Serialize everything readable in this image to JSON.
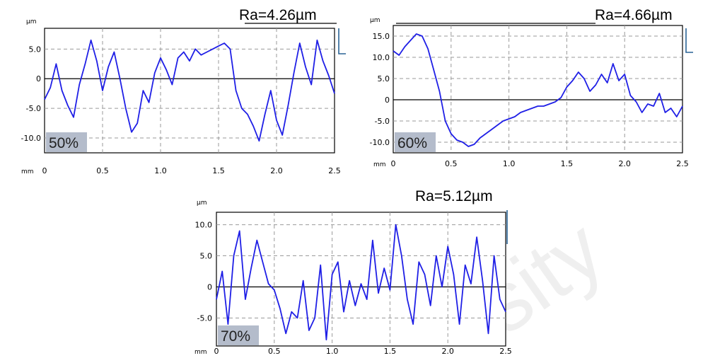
{
  "colors": {
    "series": "#1f1fe6",
    "grid": "#9a9a9a",
    "label_box": "#b4bccb",
    "marker": "#2a6496"
  },
  "watermark": "sity",
  "chart_data": [
    {
      "type": "line",
      "y_unit": "µm",
      "x_unit": "mm",
      "ra_label": "Ra=4.26µm",
      "percent_label": "50%",
      "xlim": [
        0,
        2.5
      ],
      "ylim": [
        -12.5,
        8.5
      ],
      "x_ticks": [
        0,
        0.5,
        1.0,
        1.5,
        2.0,
        2.5
      ],
      "x_tick_labels": [
        "0",
        "0.5",
        "1.0",
        "1.5",
        "2.0",
        "2.5"
      ],
      "y_ticks": [
        5.0,
        0,
        -5.0,
        -10.0
      ],
      "y_tick_labels": [
        "5.0",
        "0",
        "-5.0",
        "-10.0"
      ],
      "grid": true,
      "x": [
        0,
        0.05,
        0.1,
        0.15,
        0.2,
        0.25,
        0.3,
        0.35,
        0.4,
        0.45,
        0.5,
        0.55,
        0.6,
        0.65,
        0.7,
        0.75,
        0.8,
        0.85,
        0.9,
        0.95,
        1.0,
        1.05,
        1.1,
        1.15,
        1.2,
        1.25,
        1.3,
        1.35,
        1.4,
        1.45,
        1.5,
        1.55,
        1.6,
        1.65,
        1.7,
        1.75,
        1.8,
        1.85,
        1.9,
        1.95,
        2.0,
        2.05,
        2.1,
        2.15,
        2.2,
        2.25,
        2.3,
        2.35,
        2.4,
        2.45,
        2.5
      ],
      "y": [
        -3.5,
        -1.5,
        2.5,
        -2.0,
        -4.5,
        -6.5,
        -1.0,
        2.5,
        6.5,
        3.0,
        -2.0,
        2.0,
        4.5,
        0.0,
        -5.0,
        -9.0,
        -7.5,
        -2.0,
        -4.0,
        1.0,
        3.5,
        1.5,
        -1.0,
        3.5,
        4.5,
        3.0,
        5.0,
        4.0,
        4.5,
        5.0,
        5.5,
        6.0,
        5.0,
        -2.0,
        -5.0,
        -6.0,
        -8.0,
        -10.5,
        -6.0,
        -2.0,
        -7.0,
        -9.5,
        -4.5,
        1.0,
        6.0,
        2.0,
        -1.0,
        6.5,
        3.0,
        0.5,
        -2.5
      ]
    },
    {
      "type": "line",
      "y_unit": "µm",
      "x_unit": "mm",
      "ra_label": "Ra=4.66µm",
      "percent_label": "60%",
      "xlim": [
        0,
        2.5
      ],
      "ylim": [
        -12.5,
        17.5
      ],
      "x_ticks": [
        0,
        0.5,
        1.0,
        1.5,
        2.0,
        2.5
      ],
      "x_tick_labels": [
        "0",
        "0.5",
        "1.0",
        "1.5",
        "2.0",
        "2.5"
      ],
      "y_ticks": [
        15.0,
        10.0,
        5.0,
        0,
        -5.0,
        -10.0
      ],
      "y_tick_labels": [
        "15.0",
        "10.0",
        "5.0",
        "0",
        "-5.0",
        "-10.0"
      ],
      "grid": true,
      "x": [
        0,
        0.05,
        0.1,
        0.15,
        0.2,
        0.25,
        0.3,
        0.35,
        0.4,
        0.45,
        0.5,
        0.55,
        0.6,
        0.65,
        0.7,
        0.75,
        0.8,
        0.85,
        0.9,
        0.95,
        1.0,
        1.05,
        1.1,
        1.15,
        1.2,
        1.25,
        1.3,
        1.35,
        1.4,
        1.45,
        1.5,
        1.55,
        1.6,
        1.65,
        1.7,
        1.75,
        1.8,
        1.85,
        1.9,
        1.95,
        2.0,
        2.05,
        2.1,
        2.15,
        2.2,
        2.25,
        2.3,
        2.35,
        2.4,
        2.45,
        2.5
      ],
      "y": [
        11.5,
        10.5,
        12.5,
        14.0,
        15.5,
        15.0,
        12.0,
        7.0,
        2.0,
        -5.0,
        -8.0,
        -9.5,
        -10.0,
        -11.0,
        -10.5,
        -9.0,
        -8.0,
        -7.0,
        -6.0,
        -5.0,
        -4.5,
        -4.0,
        -3.0,
        -2.5,
        -2.0,
        -1.5,
        -1.5,
        -1.0,
        -0.5,
        0.5,
        3.0,
        4.5,
        6.5,
        5.0,
        2.0,
        3.5,
        6.0,
        4.0,
        8.5,
        4.5,
        6.0,
        1.0,
        -0.5,
        -3.0,
        -1.0,
        -1.5,
        1.5,
        -3.0,
        -2.0,
        -4.0,
        -1.5
      ]
    },
    {
      "type": "line",
      "y_unit": "µm",
      "x_unit": "mm",
      "ra_label": "Ra=5.12µm",
      "percent_label": "70%",
      "xlim": [
        0,
        2.5
      ],
      "ylim": [
        -9.5,
        12.0
      ],
      "x_ticks": [
        0,
        0.5,
        1.0,
        1.5,
        2.0,
        2.5
      ],
      "x_tick_labels": [
        "0",
        "0.5",
        "1.0",
        "1.5",
        "2.0",
        "2.5"
      ],
      "y_ticks": [
        10.0,
        5.0,
        0,
        -5.0
      ],
      "y_tick_labels": [
        "10.0",
        "5.0",
        "0",
        "-5.0"
      ],
      "grid": true,
      "x": [
        0,
        0.05,
        0.1,
        0.15,
        0.2,
        0.25,
        0.3,
        0.35,
        0.4,
        0.45,
        0.5,
        0.55,
        0.6,
        0.65,
        0.7,
        0.75,
        0.8,
        0.85,
        0.9,
        0.95,
        1.0,
        1.05,
        1.1,
        1.15,
        1.2,
        1.25,
        1.3,
        1.35,
        1.4,
        1.45,
        1.5,
        1.55,
        1.6,
        1.65,
        1.7,
        1.75,
        1.8,
        1.85,
        1.9,
        1.95,
        2.0,
        2.05,
        2.1,
        2.15,
        2.2,
        2.25,
        2.3,
        2.35,
        2.4,
        2.45,
        2.5
      ],
      "y": [
        -2.0,
        2.5,
        -6.0,
        5.0,
        9.0,
        -2.0,
        3.0,
        7.5,
        4.0,
        0.5,
        -0.5,
        -3.5,
        -7.5,
        -4.0,
        -5.0,
        1.0,
        -7.0,
        -5.0,
        3.5,
        -8.5,
        2.0,
        4.0,
        -4.0,
        1.0,
        -3.0,
        0.5,
        -2.0,
        7.5,
        -1.0,
        3.0,
        -0.5,
        10.0,
        5.0,
        -2.0,
        -6.0,
        4.0,
        2.0,
        -3.0,
        5.0,
        0.0,
        6.5,
        2.0,
        -6.0,
        3.5,
        0.5,
        8.0,
        1.0,
        -7.5,
        5.0,
        -2.0,
        -4.0
      ]
    }
  ]
}
